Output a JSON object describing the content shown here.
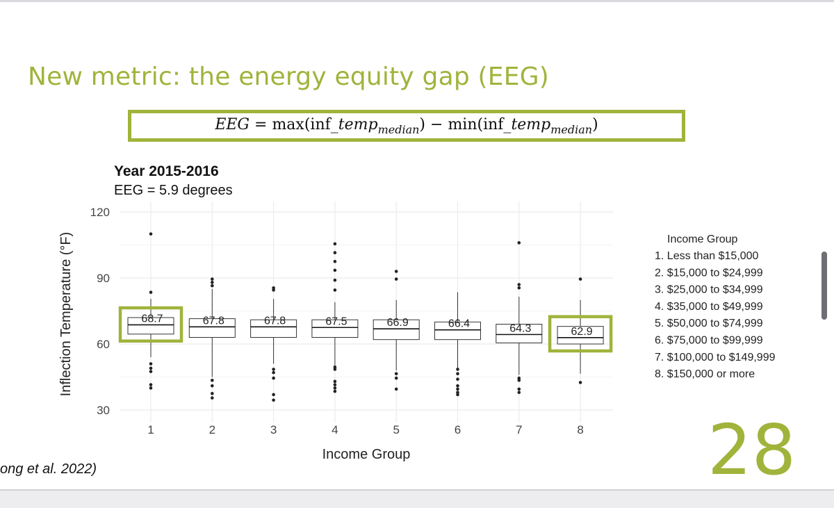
{
  "slide": {
    "title": "New metric: the energy equity gap (EEG)",
    "formula": {
      "lhs": "EEG",
      "equals": " = ",
      "max_fn": "max(inf_",
      "min_fn": "min(inf_",
      "var": "temp",
      "subscript": "median",
      "close": ")",
      "minus": " − "
    },
    "citation": "ong et al. 2022)",
    "page_number": "28"
  },
  "chart_data": {
    "type": "boxplot",
    "title": "Year 2015-2016",
    "subtitle": "EEG = 5.9 degrees",
    "xlabel": "Income Group",
    "ylabel": "Inflection Temperature (°F)",
    "ylim": [
      30,
      120
    ],
    "yticks": [
      30,
      60,
      90,
      120
    ],
    "grid": true,
    "categories": [
      "1",
      "2",
      "3",
      "4",
      "5",
      "6",
      "7",
      "8"
    ],
    "median_labels": [
      "68.7",
      "67.8",
      "67.8",
      "67.5",
      "66.9",
      "66.4",
      "64.3",
      "62.9"
    ],
    "boxes": [
      {
        "q1": 64.5,
        "median": 68.7,
        "q3": 72.0,
        "whisker_low": 54.0,
        "whisker_high": 80.5,
        "outliers": [
          110.0,
          83.5,
          51.0,
          49.0,
          47.5,
          41.5,
          40.0
        ]
      },
      {
        "q1": 63.0,
        "median": 67.8,
        "q3": 71.5,
        "whisker_low": 45.0,
        "whisker_high": 85.0,
        "outliers": [
          89.5,
          88.0,
          86.5,
          43.5,
          41.0,
          37.5,
          35.5
        ]
      },
      {
        "q1": 63.0,
        "median": 67.8,
        "q3": 71.0,
        "whisker_low": 51.0,
        "whisker_high": 80.5,
        "outliers": [
          85.5,
          84.5,
          48.5,
          47.0,
          44.5,
          37.0,
          34.5
        ]
      },
      {
        "q1": 63.0,
        "median": 67.5,
        "q3": 71.0,
        "whisker_low": 50.0,
        "whisker_high": 79.0,
        "outliers": [
          105.5,
          101.5,
          97.5,
          93.5,
          89.0,
          84.5,
          49.5,
          48.5,
          43.0,
          41.5,
          40.0,
          38.5
        ]
      },
      {
        "q1": 62.0,
        "median": 66.9,
        "q3": 71.0,
        "whisker_low": 48.0,
        "whisker_high": 80.0,
        "outliers": [
          93.0,
          89.5,
          46.5,
          44.5,
          39.5
        ]
      },
      {
        "q1": 62.0,
        "median": 66.4,
        "q3": 70.0,
        "whisker_low": 49.0,
        "whisker_high": 83.5,
        "outliers": [
          48.5,
          46.5,
          44.0,
          41.0,
          39.5,
          38.0,
          37.0
        ]
      },
      {
        "q1": 60.5,
        "median": 64.3,
        "q3": 69.0,
        "whisker_low": 46.0,
        "whisker_high": 81.5,
        "outliers": [
          106.0,
          87.0,
          85.5,
          44.5,
          43.5,
          39.5,
          38.0
        ]
      },
      {
        "q1": 60.0,
        "median": 62.9,
        "q3": 68.0,
        "whisker_low": 46.5,
        "whisker_high": 80.0,
        "outliers": [
          89.5,
          42.5
        ]
      }
    ],
    "highlighted_groups": [
      "1",
      "8"
    ],
    "legend": {
      "title": "Income Group",
      "placement": "right",
      "items": [
        "1. Less than $15,000",
        "2. $15,000 to $24,999",
        "3. $25,000 to $34,999",
        "4. $35,000 to $49,999",
        "5. $50,000 to $74,999",
        "6. $75,000 to $99,999",
        "7. $100,000 to $149,999",
        "8. $150,000 or more"
      ]
    },
    "colors": {
      "accent": "#a1b33b",
      "box_stroke": "#333333",
      "grid": "#ebebeb"
    }
  }
}
